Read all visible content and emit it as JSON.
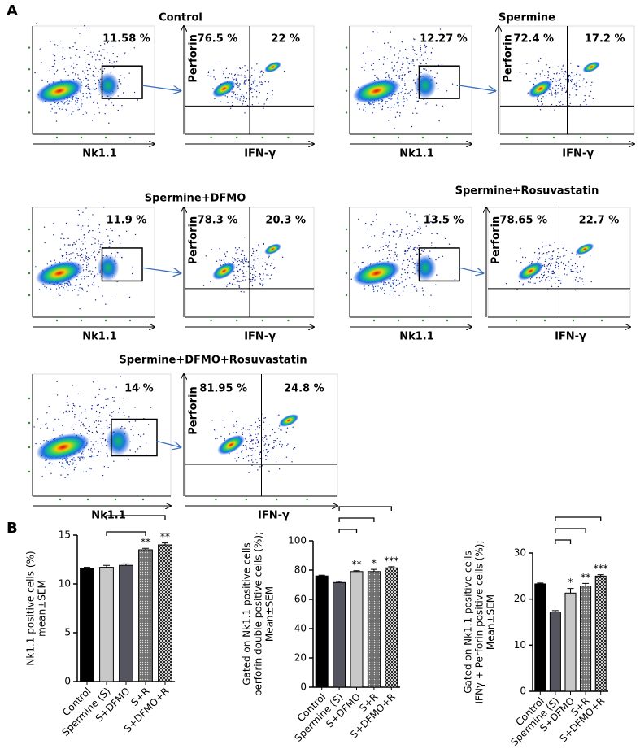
{
  "panel_a": {
    "label": "A",
    "samples": [
      {
        "title": "Control",
        "gate_percent": "11.58 %",
        "quadrant_left": "76.5 %",
        "quadrant_right": "22 %",
        "x_label_left": "Nk1.1",
        "y_label_right": "Perforin",
        "x_label_right": "IFN-γ"
      },
      {
        "title": "Spermine",
        "gate_percent": "12.27 %",
        "quadrant_left": "72.4 %",
        "quadrant_right": "17.2 %",
        "x_label_left": "Nk1.1",
        "y_label_right": "Perforin",
        "x_label_right": "IFN-γ"
      },
      {
        "title": "Spermine+DFMO",
        "gate_percent": "11.9 %",
        "quadrant_left": "78.3 %",
        "quadrant_right": "20.3 %",
        "x_label_left": "Nk1.1",
        "y_label_right": "Perforin",
        "x_label_right": "IFN-γ"
      },
      {
        "title": "Spermine+Rosuvastatin",
        "gate_percent": "13.5 %",
        "quadrant_left": "78.65 %",
        "quadrant_right": "22.7 %",
        "x_label_left": "Nk1.1",
        "y_label_right": "Perforin",
        "x_label_right": "IFN-γ"
      },
      {
        "title": "Spermine+DFMO+Rosuvastatin",
        "gate_percent": "14 %",
        "quadrant_left": "81.95 %",
        "quadrant_right": "24.8 %",
        "x_label_left": "Nk1.1",
        "y_label_right": "Perforin",
        "x_label_right": "IFN-γ"
      }
    ]
  },
  "panel_b_label": "B",
  "chart_data": [
    {
      "type": "bar",
      "ylabel_lines": [
        "Nk1.1 positive cells (%)",
        "mean±SEM"
      ],
      "categories": [
        "Control",
        "Spermine (S)",
        "S+DFMO",
        "S+R",
        "S+DFMO+R"
      ],
      "values": [
        11.6,
        11.7,
        11.9,
        13.5,
        14.0
      ],
      "errors": [
        0.1,
        0.2,
        0.15,
        0.15,
        0.2
      ],
      "annotations": [
        null,
        null,
        null,
        "**",
        "**"
      ],
      "colors": [
        "#000000",
        "#c8c8c8",
        "#55555f",
        "#6e6e6e",
        "#ffffff"
      ],
      "hatched": [
        false,
        false,
        false,
        true,
        true
      ],
      "ylim": [
        0,
        15
      ],
      "yticks": [
        0,
        5,
        10,
        15
      ]
    },
    {
      "type": "bar",
      "ylabel_lines": [
        "Gated on Nk1.1 positive cells",
        "perforin double positive cells (%);",
        "Mean±SEM"
      ],
      "categories": [
        "Control",
        "Spermine (S)",
        "S+DFMO",
        "S+R",
        "S+DFMO+R"
      ],
      "values": [
        76,
        71.5,
        79,
        79,
        81.5
      ],
      "errors": [
        0.5,
        0.8,
        0.6,
        1.5,
        0.8
      ],
      "annotations": [
        null,
        null,
        "**",
        "*",
        "***"
      ],
      "colors": [
        "#000000",
        "#55555f",
        "#c8c8c8",
        "#6e6e6e",
        "#ffffff"
      ],
      "hatched": [
        false,
        false,
        false,
        true,
        true
      ],
      "ylim": [
        0,
        100
      ],
      "yticks": [
        0,
        20,
        40,
        60,
        80,
        100
      ]
    },
    {
      "type": "bar",
      "ylabel_lines": [
        "Gated on Nk1.1 positive cells",
        "IFNγ + Perforin positive cells (%);",
        "Mean±SEM"
      ],
      "categories": [
        "Control",
        "Spermine (S)",
        "S+DFMO",
        "S+R",
        "S+DFMO+R"
      ],
      "values": [
        23.3,
        17.2,
        21.3,
        22.8,
        25
      ],
      "errors": [
        0.2,
        0.3,
        1.0,
        0.6,
        0.3
      ],
      "annotations": [
        null,
        null,
        "*",
        "**",
        "***"
      ],
      "colors": [
        "#000000",
        "#55555f",
        "#c8c8c8",
        "#6e6e6e",
        "#ffffff"
      ],
      "hatched": [
        false,
        false,
        false,
        true,
        true
      ],
      "ylim": [
        0,
        30
      ],
      "yticks": [
        0,
        10,
        20,
        30
      ]
    }
  ]
}
